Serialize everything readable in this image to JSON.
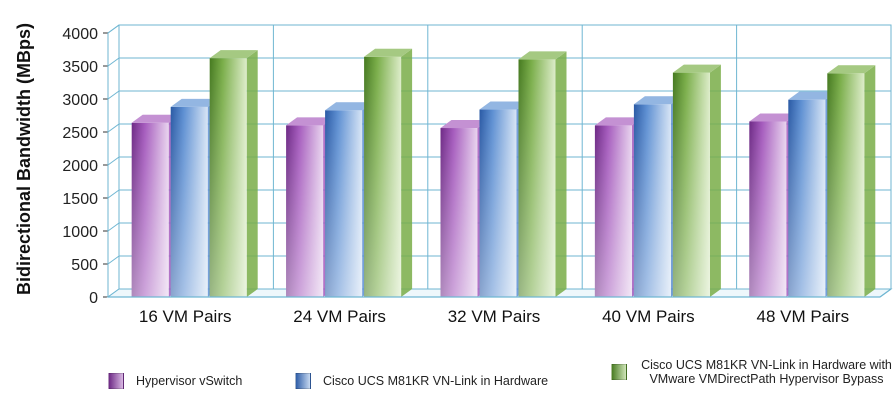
{
  "chart_data": {
    "type": "bar",
    "title": "",
    "xlabel": "",
    "ylabel": "Bidirectional Bandwidth (MBps)",
    "ylim": [
      0,
      4000
    ],
    "yticks": [
      "0",
      "500",
      "1000",
      "1500",
      "2000",
      "2500",
      "3000",
      "3500",
      "4000"
    ],
    "categories": [
      "16 VM Pairs",
      "24 VM Pairs",
      "32 VM Pairs",
      "40 VM Pairs",
      "48 VM Pairs"
    ],
    "series": [
      {
        "name": "Hypervisor vSwitch",
        "color": "#9b4fb0",
        "values": [
          2640,
          2600,
          2560,
          2600,
          2660
        ]
      },
      {
        "name": "Cisco UCS M81KR VN-Link in Hardware",
        "color": "#4f7fc8",
        "values": [
          2880,
          2830,
          2840,
          2920,
          2990
        ]
      },
      {
        "name": "Cisco UCS M81KR VN-Link in Hardware with VMware VMDirectPath Hypervisor Bypass",
        "color": "#6ea33c",
        "values": [
          3620,
          3640,
          3600,
          3400,
          3390
        ]
      }
    ],
    "grid": true,
    "legend_position": "bottom",
    "style": "3d-cylinder-gradient"
  }
}
